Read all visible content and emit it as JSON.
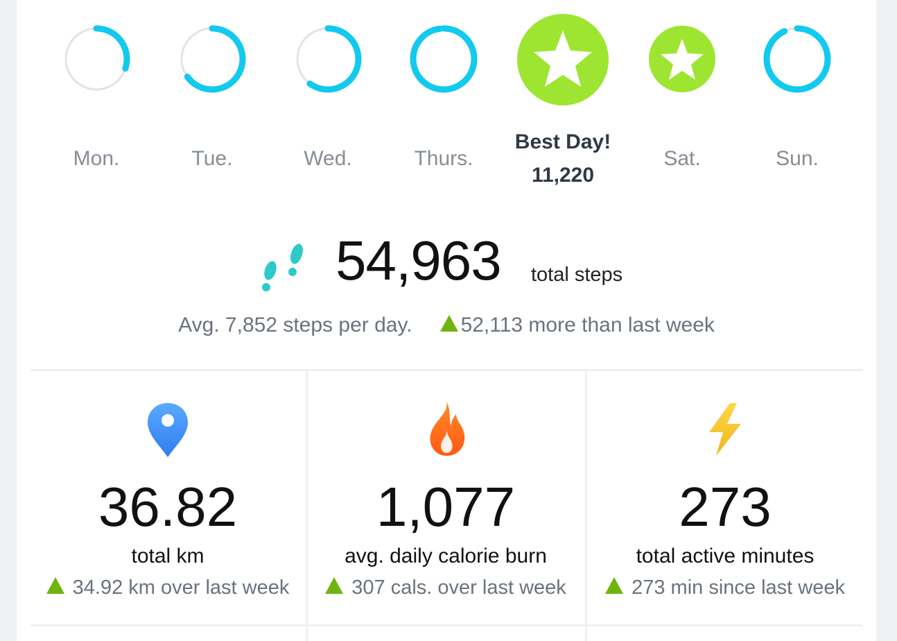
{
  "week": {
    "days": [
      {
        "label": "Mon.",
        "type": "ring",
        "progress": 0.3
      },
      {
        "label": "Tue.",
        "type": "ring",
        "progress": 0.65
      },
      {
        "label": "Wed.",
        "type": "ring",
        "progress": 0.6
      },
      {
        "label": "Thurs.",
        "type": "ring",
        "progress": 0.98
      },
      {
        "label": "Best Day!",
        "type": "best",
        "steps": "11,220"
      },
      {
        "label": "Sat.",
        "type": "star"
      },
      {
        "label": "Sun.",
        "type": "ring",
        "progress": 0.93
      }
    ],
    "ring_color": "#12c9ee",
    "ring_track_color": "#e3e3e3",
    "goal_color": "#9de530"
  },
  "steps": {
    "total": "54,963",
    "unit": "total steps",
    "avg_text": "Avg. 7,852 steps per day.",
    "change_text": "52,113 more than last week",
    "icon": "footprints-icon"
  },
  "stats": [
    {
      "icon": "location-pin-icon",
      "value": "36.82",
      "label": "total km",
      "change": "34.92 km over last week"
    },
    {
      "icon": "flame-icon",
      "value": "1,077",
      "label": "avg. daily calorie burn",
      "change": "307 cals. over last week"
    },
    {
      "icon": "lightning-icon",
      "value": "273",
      "label": "total active minutes",
      "change": "273 min since last week"
    }
  ],
  "colors": {
    "up_arrow": "#6fb410",
    "text_muted": "#6a727c"
  }
}
